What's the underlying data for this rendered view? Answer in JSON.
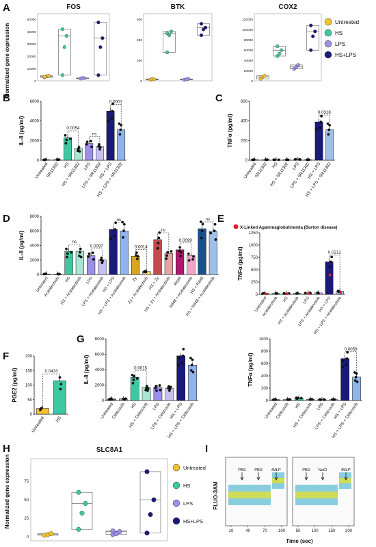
{
  "colors": {
    "untreated": "#f2c12e",
    "hs": "#3cc8a0",
    "lps": "#9b8fe8",
    "hslps": "#1a1a7a",
    "red": "#e02020",
    "blue": "#2a6fd6",
    "pink": "#f2a3c8",
    "magenta": "#b0186e"
  },
  "panels": {
    "A": {
      "letter": "A",
      "ylabel": "Normalized gene expression",
      "legend": [
        "Untreated",
        "HS",
        "LPS",
        "HS+LPS"
      ],
      "genes": [
        {
          "name": "FOS",
          "ticks": [
            "0",
            "10000",
            "20000",
            "30000",
            "40000",
            "50000"
          ],
          "max": 55000,
          "groups": [
            [
              3000,
              4000,
              4500,
              3500
            ],
            [
              5000,
              30000,
              40000,
              46000
            ],
            [
              2000,
              2500,
              2300
            ],
            [
              5000,
              30000,
              38000,
              52000
            ]
          ]
        },
        {
          "name": "BTK",
          "ticks": [
            "0",
            "200",
            "400",
            "600"
          ],
          "max": 650,
          "groups": [
            [
              10,
              20,
              15
            ],
            [
              300,
              480,
              520,
              500
            ],
            [
              10,
              15,
              20
            ],
            [
              480,
              540,
              560,
              600
            ]
          ]
        },
        {
          "name": "COX2",
          "ticks": [
            "0",
            "20000",
            "40000",
            "60000",
            "80000",
            "100000",
            "120000"
          ],
          "max": 125000,
          "groups": [
            [
              4000,
              8000,
              10000
            ],
            [
              50000,
              55000,
              62000,
              70000
            ],
            [
              24000,
              28000,
              32000
            ],
            [
              62000,
              90000,
              100000,
              112000
            ]
          ]
        }
      ]
    },
    "B": {
      "letter": "B",
      "ylabel": "IL-8 (pg/ml)",
      "ticks": [
        "0",
        "2000",
        "4000",
        "6000"
      ],
      "max": 6000,
      "cats": [
        "Untreated",
        "SR11302",
        "HS",
        "HS + SR11302",
        "LPS",
        "LPS + SR11302",
        "HS + LPS",
        "HS + LPS + SR11302"
      ],
      "values": [
        50,
        60,
        2300,
        1200,
        1700,
        1400,
        5000,
        3100
      ],
      "pvals": [
        {
          "label": "0.0054",
          "a": 2,
          "b": 3
        },
        {
          "label": "ns",
          "a": 4,
          "b": 5
        },
        {
          "label": "0.0001",
          "a": 6,
          "b": 7
        }
      ]
    },
    "C": {
      "letter": "C",
      "ylabel": "TNFα (pg/ml)",
      "ticks": [
        "0",
        "200",
        "400",
        "600"
      ],
      "max": 600,
      "cats": [
        "Untreated",
        "SR11302",
        "HS",
        "HS + SR11302",
        "LPS",
        "LPS + SR11302",
        "HS + LPS",
        "HS + LPS + SR11302"
      ],
      "values": [
        5,
        5,
        5,
        5,
        8,
        5,
        390,
        310
      ],
      "pvals": [
        {
          "label": "0.0318",
          "a": 6,
          "b": 7
        }
      ]
    },
    "D": {
      "letter": "D",
      "ylabel": "IL-8 (pg/ml)",
      "ticks": [
        "0",
        "2000",
        "4000",
        "6000",
        "8000"
      ],
      "max": 8000,
      "cats": [
        "Untreated",
        "Acalabrutinib",
        "HS",
        "HS + Acalabrutinib",
        "LPS",
        "LPS + Acalabrutinib",
        "HS + LPS",
        "HS + LPS + Acalabrutinib",
        "Zy",
        "Zy + Acalabrutinib",
        "HS + Zy",
        "HS + Zy + Acalabrutinib",
        "R848",
        "R848 + Acalabrutinib",
        "HS + R848",
        "HS + R848 + Acalabrutinib"
      ],
      "values": [
        80,
        60,
        3200,
        3200,
        2600,
        2000,
        6200,
        6000,
        2500,
        400,
        4800,
        2900,
        3400,
        2600,
        6300,
        6000
      ],
      "pvals": [
        {
          "label": "ns",
          "a": 2,
          "b": 3
        },
        {
          "label": "0.0097",
          "a": 4,
          "b": 5
        },
        {
          "label": "ns",
          "a": 6,
          "b": 7
        },
        {
          "label": "0.0014",
          "a": 8,
          "b": 9
        },
        {
          "label": "ns",
          "a": 10,
          "b": 11
        },
        {
          "label": "0.0099",
          "a": 12,
          "b": 13
        },
        {
          "label": "ns",
          "a": 14,
          "b": 15
        }
      ]
    },
    "E": {
      "letter": "E",
      "ylabel": "TNFα (pg/ml)",
      "legend_text": "X-Linked Agammaglobulinemia (Burton disease)",
      "ticks": [
        "0",
        "250",
        "500",
        "750",
        "1000",
        "1250"
      ],
      "max": 1250,
      "cats": [
        "Untreated",
        "Acalabrutinib",
        "HS",
        "HS + Acalabrutinib",
        "LPS",
        "LPS + Acalabrutinib",
        "HS + LPS",
        "HS + LPS + Acalabrutinib"
      ],
      "values": [
        20,
        20,
        20,
        20,
        30,
        30,
        660,
        60
      ],
      "pvals": [
        {
          "label": "0.0212",
          "a": 6,
          "b": 7
        }
      ]
    },
    "F": {
      "letter": "F",
      "ylabel": "PGE2 (pg/ml)",
      "ticks": [
        "0",
        "50",
        "100",
        "150",
        "200"
      ],
      "max": 200,
      "cats": [
        "Untreated",
        "HS"
      ],
      "values": [
        20,
        115
      ],
      "pvals": [
        {
          "label": "0.0433",
          "a": 0,
          "b": 1
        }
      ]
    },
    "G1": {
      "letter": "G",
      "ylabel": "IL-8 (pg/ml)",
      "ticks": [
        "0",
        "2000",
        "4000",
        "6000",
        "8000"
      ],
      "max": 8000,
      "cats": [
        "Untreated",
        "Celecoxib",
        "HS",
        "HS + Celecoxib",
        "LPS",
        "LPS + Celecoxib",
        "HS + LPS",
        "HS + LPS + Celecoxib"
      ],
      "values": [
        200,
        200,
        3000,
        1700,
        1700,
        1600,
        5800,
        4600
      ],
      "pvals": [
        {
          "label": "0.0015",
          "a": 2,
          "b": 3
        }
      ]
    },
    "G2": {
      "ylabel": "TNFα (pg/ml)",
      "ticks": [
        "0",
        "200",
        "400",
        "600",
        "800",
        "1000"
      ],
      "max": 1000,
      "cats": [
        "Untreated",
        "Celecoxib",
        "HS",
        "HS + Celecoxib",
        "LPS",
        "LPS + Celecoxib",
        "HS + LPS",
        "HS + LPS + Celecoxib"
      ],
      "values": [
        15,
        15,
        40,
        20,
        15,
        15,
        680,
        380
      ],
      "pvals": [
        {
          "label": "0.0058",
          "a": 6,
          "b": 7
        }
      ]
    },
    "H": {
      "letter": "H",
      "title": "SLC8A1",
      "ylabel": "Normalized gene expression",
      "ticks": [
        "0",
        "25",
        "50",
        "75"
      ],
      "max": 100,
      "legend": [
        "Untreated",
        "HS",
        "LPS",
        "HS+LPS"
      ],
      "groups": [
        [
          2,
          3,
          4
        ],
        [
          10,
          32,
          45,
          60
        ],
        [
          3,
          4,
          7,
          8
        ],
        [
          5,
          30,
          50,
          88
        ]
      ]
    },
    "I": {
      "letter": "I",
      "ylabel": "FLUO-3AM",
      "xlabel": "Time (sec)",
      "left": {
        "ticks": [
          "10",
          "40",
          "70",
          "100"
        ],
        "labels": [
          "PBS",
          "PBS",
          "fMLP"
        ]
      },
      "right": {
        "ticks": [
          "50",
          "100",
          "150",
          "200"
        ],
        "labels": [
          "PBS",
          "NaCl",
          "fMLP"
        ]
      }
    }
  }
}
